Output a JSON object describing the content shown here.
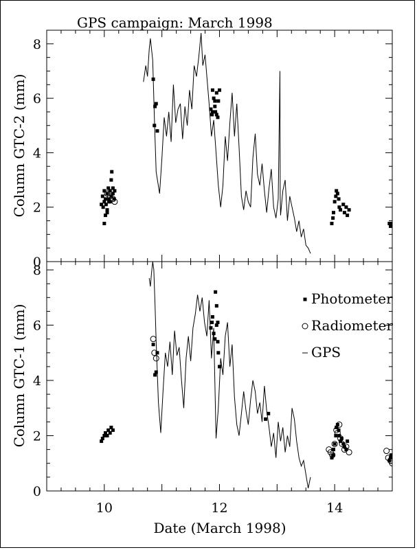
{
  "chart_data": {
    "title": "GPS campaign: March 1998",
    "xlabel": "Date (March 1998)",
    "xlim": [
      9,
      15
    ],
    "x_ticks": [
      10,
      12,
      14
    ],
    "panels": [
      {
        "name": "top",
        "ylabel": "Column GTC-2 (mm)",
        "ylim": [
          0,
          8.5
        ],
        "y_ticks": [
          0,
          2,
          4,
          6,
          8
        ],
        "series": [
          {
            "name": "GPS",
            "type": "line",
            "x": [
              10.68,
              10.72,
              10.75,
              10.78,
              10.8,
              10.84,
              10.87,
              10.9,
              10.93,
              10.96,
              11.0,
              11.04,
              11.08,
              11.12,
              11.16,
              11.2,
              11.24,
              11.28,
              11.32,
              11.36,
              11.4,
              11.44,
              11.48,
              11.52,
              11.56,
              11.6,
              11.64,
              11.68,
              11.71,
              11.75,
              11.78,
              11.82,
              11.86,
              11.9,
              11.94,
              11.98,
              12.02,
              12.06,
              12.1,
              12.14,
              12.18,
              12.22,
              12.26,
              12.3,
              12.34,
              12.38,
              12.42,
              12.46,
              12.5,
              12.54,
              12.58,
              12.62,
              12.66,
              12.7,
              12.74,
              12.78,
              12.82,
              12.86,
              12.9,
              12.94,
              12.98,
              13.02,
              13.05,
              13.055,
              13.06,
              13.1,
              13.14,
              13.18,
              13.22,
              13.26,
              13.3,
              13.34,
              13.38,
              13.42,
              13.46,
              13.5,
              13.54,
              13.58
            ],
            "values": [
              6.6,
              7.2,
              6.8,
              7.8,
              8.2,
              7.4,
              5.2,
              3.3,
              2.9,
              2.5,
              3.8,
              5.3,
              4.6,
              5.5,
              4.4,
              6.5,
              5.1,
              5.6,
              5.8,
              4.5,
              5.7,
              5.0,
              6.3,
              5.6,
              7.2,
              6.8,
              7.5,
              8.4,
              7.2,
              7.6,
              6.8,
              5.8,
              4.6,
              5.2,
              4.0,
              2.8,
              2.0,
              2.8,
              4.6,
              3.7,
              5.1,
              6.2,
              4.6,
              5.8,
              4.2,
              2.4,
              1.9,
              2.6,
              2.2,
              2.0,
              3.8,
              4.7,
              3.2,
              2.8,
              3.6,
              2.6,
              1.8,
              2.7,
              3.4,
              2.0,
              1.6,
              2.3,
              7.0,
              2.4,
              1.7,
              2.6,
              3.0,
              1.5,
              2.4,
              2.0,
              1.6,
              1.1,
              1.5,
              0.9,
              1.2,
              0.6,
              0.5,
              0.3
            ]
          },
          {
            "name": "Photometer",
            "type": "scatter",
            "marker": "square",
            "x": [
              9.95,
              9.97,
              9.98,
              10.0,
              10.0,
              10.02,
              10.03,
              10.05,
              10.05,
              10.07,
              10.08,
              10.1,
              10.1,
              10.12,
              10.12,
              10.13,
              10.15,
              10.15,
              10.17,
              10.18,
              10.0,
              10.02,
              10.05,
              10.08,
              10.85,
              10.87,
              10.88,
              10.9,
              10.92,
              11.85,
              11.87,
              11.88,
              11.9,
              11.92,
              11.93,
              11.95,
              11.97,
              11.98,
              12.0,
              11.88,
              11.92,
              11.95,
              13.95,
              13.97,
              13.98,
              14.0,
              14.02,
              14.03,
              14.05,
              14.07,
              14.08,
              14.1,
              14.15,
              14.17,
              14.2,
              14.22,
              14.25,
              14.95,
              14.97,
              14.98
            ],
            "values": [
              2.1,
              2.4,
              2.0,
              2.2,
              2.6,
              2.3,
              2.1,
              2.5,
              1.8,
              2.7,
              2.3,
              2.6,
              2.2,
              3.0,
              2.4,
              3.3,
              2.5,
              2.7,
              2.3,
              2.6,
              1.4,
              1.7,
              1.9,
              2.2,
              6.7,
              5.0,
              5.7,
              5.8,
              4.8,
              5.6,
              5.4,
              6.3,
              6.0,
              5.9,
              5.5,
              6.2,
              5.3,
              5.9,
              6.3,
              5.5,
              5.7,
              5.4,
              1.4,
              1.6,
              1.8,
              2.2,
              2.4,
              2.6,
              2.5,
              2.3,
              2.0,
              1.9,
              2.1,
              1.8,
              2.0,
              1.7,
              1.9,
              1.4,
              1.3,
              1.4
            ]
          },
          {
            "name": "Radiometer",
            "type": "scatter",
            "marker": "circle",
            "x": [
              10.1,
              10.15,
              10.18,
              10.05
            ],
            "values": [
              2.4,
              2.3,
              2.2,
              2.5
            ]
          }
        ]
      },
      {
        "name": "bottom",
        "ylabel": "Column GTC-1 (mm)",
        "ylim": [
          0,
          8.3
        ],
        "y_ticks": [
          0,
          2,
          4,
          6,
          8
        ],
        "legend": {
          "placement": "top-right",
          "entries": [
            "Photometer",
            "Radiometer",
            "GPS"
          ]
        },
        "series": [
          {
            "name": "GPS",
            "type": "line",
            "x": [
              10.78,
              10.8,
              10.82,
              10.84,
              10.86,
              10.88,
              10.9,
              10.94,
              10.98,
              11.02,
              11.06,
              11.1,
              11.14,
              11.18,
              11.22,
              11.26,
              11.3,
              11.34,
              11.38,
              11.42,
              11.46,
              11.5,
              11.54,
              11.58,
              11.62,
              11.66,
              11.7,
              11.74,
              11.78,
              11.82,
              11.86,
              11.9,
              11.94,
              11.98,
              12.02,
              12.06,
              12.1,
              12.14,
              12.18,
              12.22,
              12.26,
              12.3,
              12.34,
              12.38,
              12.42,
              12.46,
              12.5,
              12.54,
              12.58,
              12.62,
              12.66,
              12.7,
              12.74,
              12.78,
              12.82,
              12.86,
              12.9,
              12.94,
              12.98,
              13.02,
              13.06,
              13.1,
              13.14,
              13.18,
              13.22,
              13.26,
              13.3,
              13.34,
              13.38,
              13.42,
              13.46,
              13.5,
              13.54,
              13.58
            ],
            "values": [
              7.7,
              7.4,
              7.9,
              8.3,
              8.0,
              6.8,
              5.4,
              3.2,
              2.1,
              3.6,
              5.0,
              4.5,
              5.4,
              4.2,
              5.8,
              4.9,
              5.2,
              4.0,
              3.0,
              4.8,
              5.6,
              4.7,
              5.9,
              6.4,
              7.1,
              6.5,
              7.0,
              6.1,
              5.6,
              6.9,
              4.8,
              5.9,
              1.9,
              3.0,
              4.8,
              4.2,
              5.6,
              6.1,
              4.5,
              5.3,
              3.4,
              2.4,
              2.0,
              2.8,
              3.6,
              2.9,
              2.4,
              3.3,
              4.0,
              3.6,
              2.8,
              3.2,
              2.5,
              3.8,
              2.9,
              2.3,
              1.6,
              2.1,
              1.2,
              2.5,
              1.8,
              2.3,
              1.4,
              2.0,
              1.6,
              3.0,
              2.6,
              1.8,
              1.2,
              0.9,
              1.1,
              0.6,
              0.1,
              0.5
            ]
          },
          {
            "name": "Photometer",
            "type": "scatter",
            "marker": "square",
            "x": [
              9.95,
              9.97,
              10.0,
              10.02,
              10.05,
              10.07,
              10.1,
              10.12,
              10.15,
              10.88,
              10.9,
              10.92,
              10.85,
              11.85,
              11.87,
              11.88,
              11.9,
              11.92,
              11.93,
              11.95,
              11.97,
              11.98,
              12.0,
              11.95,
              11.97,
              12.8,
              12.85,
              13.95,
              13.97,
              13.98,
              14.0,
              14.02,
              14.03,
              14.05,
              14.07,
              14.08,
              14.1,
              14.12,
              14.15,
              14.17,
              14.2,
              14.22,
              14.95,
              14.97,
              14.98
            ],
            "values": [
              1.8,
              1.9,
              2.0,
              2.1,
              2.0,
              2.2,
              2.1,
              2.3,
              2.2,
              4.2,
              4.3,
              5.0,
              5.3,
              5.9,
              6.1,
              6.3,
              5.7,
              5.5,
              7.2,
              6.0,
              5.4,
              5.0,
              4.5,
              6.7,
              6.1,
              2.6,
              2.8,
              1.2,
              1.3,
              1.5,
              1.7,
              2.0,
              2.3,
              2.4,
              2.2,
              2.0,
              1.8,
              1.9,
              1.7,
              1.6,
              1.5,
              1.8,
              1.1,
              1.2,
              1.3
            ]
          },
          {
            "name": "Radiometer",
            "type": "scatter",
            "marker": "circle",
            "x": [
              10.85,
              10.87,
              10.9,
              13.9,
              13.93,
              13.96,
              14.0,
              14.03,
              14.05,
              14.08,
              14.1,
              14.13,
              14.17,
              14.2,
              14.25,
              14.9,
              14.93,
              14.97,
              15.0
            ],
            "values": [
              5.5,
              5.0,
              4.8,
              1.5,
              1.4,
              1.3,
              1.7,
              2.2,
              2.1,
              2.4,
              1.9,
              1.7,
              1.5,
              1.6,
              1.4,
              1.45,
              1.2,
              1.1,
              1.0
            ]
          }
        ]
      }
    ]
  }
}
